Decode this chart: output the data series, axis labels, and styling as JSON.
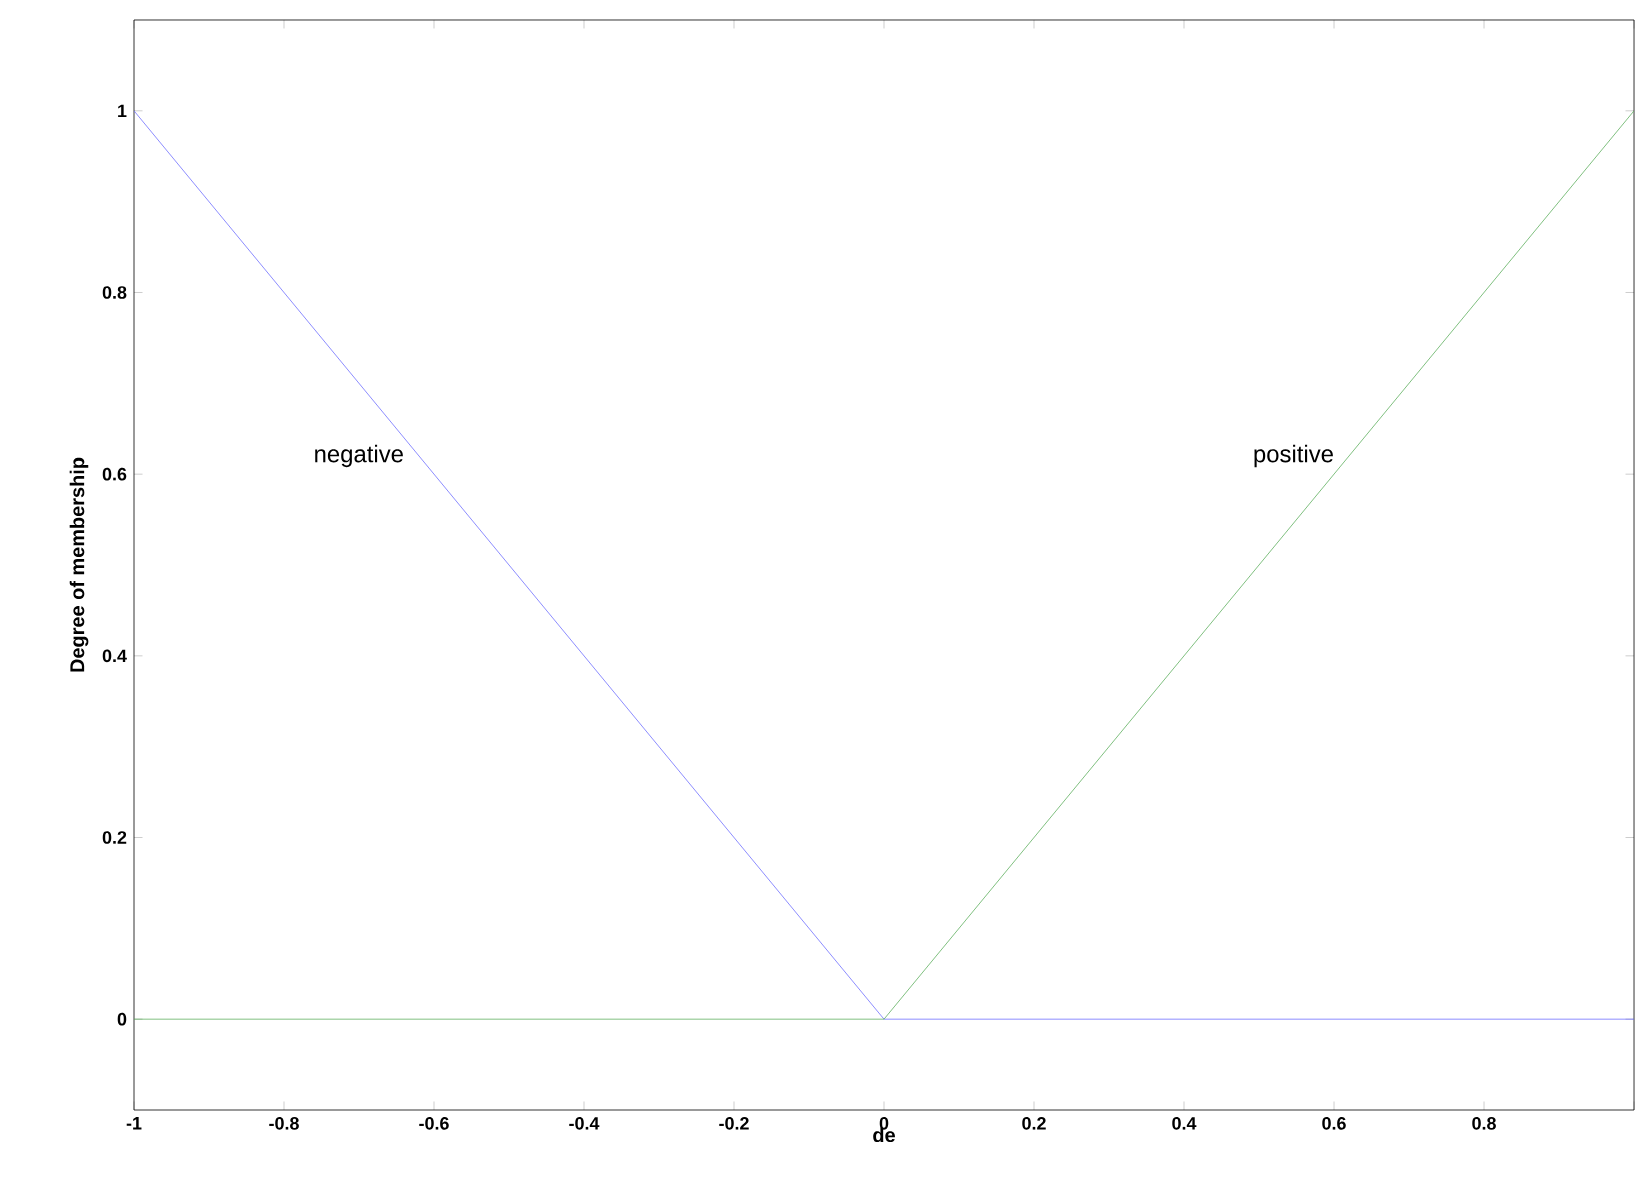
{
  "chart_data": {
    "type": "line",
    "xlabel": "de",
    "ylabel": "Degree of membership",
    "xlim": [
      -1,
      1
    ],
    "ylim": [
      -0.1,
      1.1
    ],
    "xticks": [
      -1,
      -0.8,
      -0.6,
      -0.4,
      -0.2,
      0,
      0.2,
      0.4,
      0.6,
      0.8,
      {
        "value": 1,
        "label": null
      }
    ],
    "yticks": [
      0,
      0.2,
      0.4,
      0.6,
      0.8,
      1
    ],
    "series": [
      {
        "name": "negative",
        "color": "#7070ff",
        "x": [
          -1,
          0,
          1
        ],
        "values": [
          1,
          0,
          0
        ]
      },
      {
        "name": "positive",
        "color": "#60b060",
        "x": [
          -1,
          0,
          1
        ],
        "values": [
          0,
          0,
          1
        ]
      }
    ],
    "grid": false,
    "marker": "none",
    "line_style": "solid"
  }
}
